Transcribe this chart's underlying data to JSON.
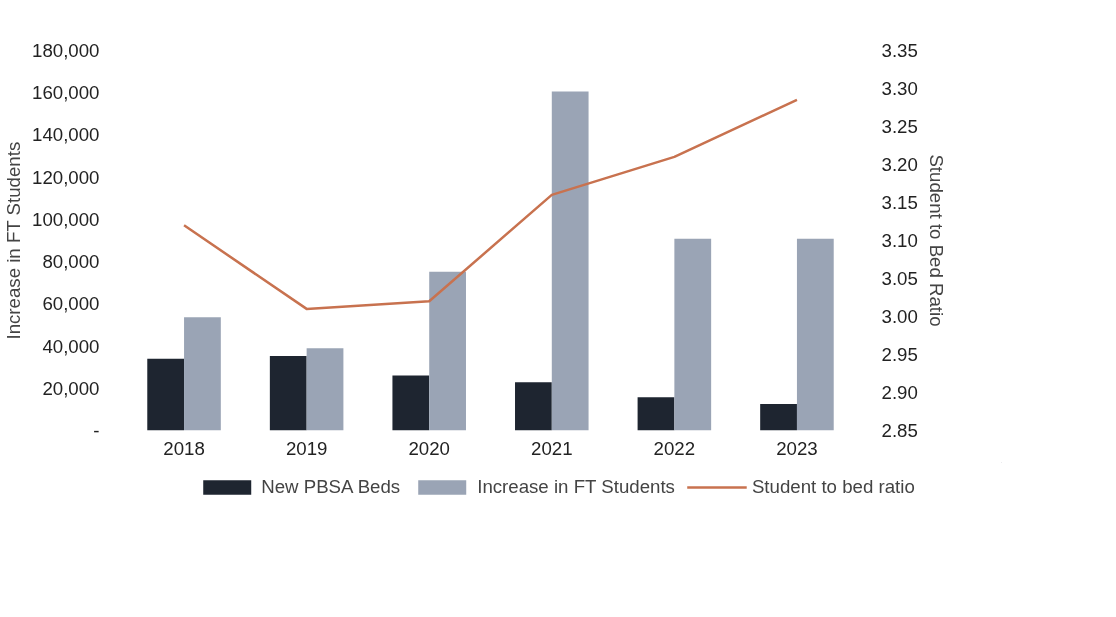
{
  "chart_data": {
    "type": "bar",
    "categories": [
      "2018",
      "2019",
      "2020",
      "2021",
      "2022",
      "2023"
    ],
    "ylabel": "Increase in FT Students",
    "y2label": "Student to Bed Ratio",
    "ylim": [
      0,
      180000
    ],
    "yticks": [
      {
        "value": 0,
        "label": "-"
      },
      {
        "value": 20000,
        "label": "20,000"
      },
      {
        "value": 40000,
        "label": "40,000"
      },
      {
        "value": 60000,
        "label": "60,000"
      },
      {
        "value": 80000,
        "label": "80,000"
      },
      {
        "value": 100000,
        "label": "100,000"
      },
      {
        "value": 120000,
        "label": "120,000"
      },
      {
        "value": 140000,
        "label": "140,000"
      },
      {
        "value": 160000,
        "label": "160,000"
      },
      {
        "value": 180000,
        "label": "180,000"
      }
    ],
    "y2lim": [
      2.85,
      3.35
    ],
    "y2ticks": [
      2.85,
      {
        "value": 2.9,
        "label": "2.90"
      },
      2.95,
      {
        "value": 3.0,
        "label": "3.00"
      },
      3.05,
      {
        "value": 3.1,
        "label": "3.10"
      },
      3.15,
      {
        "value": 3.2,
        "label": "3.20"
      },
      3.25,
      {
        "value": 3.3,
        "label": "3.30"
      },
      3.35
    ],
    "series": [
      {
        "name": "New PBSA Beds",
        "color": "#1e2530",
        "values": [
          34000,
          35300,
          26000,
          22800,
          15700,
          12500
        ]
      },
      {
        "name": "Increase in FT Students",
        "color": "#9aa4b5",
        "values": [
          53700,
          39000,
          75200,
          160600,
          90800,
          90800
        ]
      },
      {
        "name": "Student to bed ratio",
        "type": "line",
        "axis": "y2",
        "color": "#c8724f",
        "values": [
          3.12,
          3.01,
          3.02,
          3.16,
          3.21,
          3.285
        ]
      }
    ],
    "legend": "bottom",
    "grid": false
  }
}
